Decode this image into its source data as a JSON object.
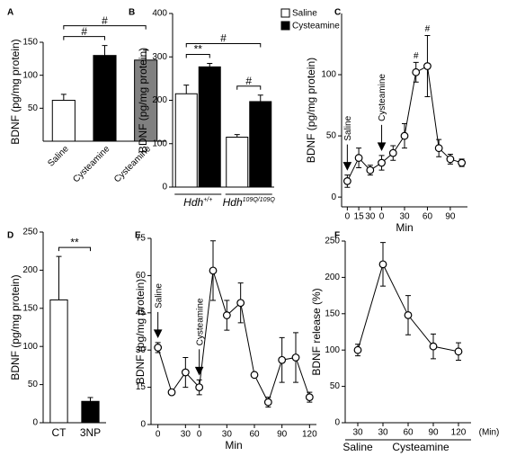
{
  "chart_data": [
    {
      "type": "bar",
      "panel": "A",
      "ylabel": "BDNF (pg/mg protein)",
      "categories": [
        "Saline",
        "Cysteamine",
        "Cysteamine"
      ],
      "values": [
        62,
        130,
        123
      ],
      "errors": [
        9,
        15,
        15
      ],
      "colors": [
        "#ffffff",
        "#000000",
        "#808080"
      ],
      "ylim": [
        0,
        150
      ],
      "yticks": [
        50,
        100,
        150
      ],
      "brackets": [
        {
          "pair": [
            0,
            1
          ],
          "label": "#"
        },
        {
          "pair": [
            0,
            2
          ],
          "label": "#"
        }
      ]
    },
    {
      "type": "grouped_bar",
      "panel": "B",
      "ylabel": "BDNF (pg/mg protein)",
      "categories": [
        {
          "name": "Hdh",
          "sup": "+/+"
        },
        {
          "name": "Hdh",
          "sup": "109Q/109Q"
        }
      ],
      "series": [
        {
          "name": "Saline",
          "color": "#ffffff",
          "values": [
            215,
            115
          ],
          "errors": [
            20,
            6
          ]
        },
        {
          "name": "Cysteamine",
          "color": "#000000",
          "values": [
            277,
            197
          ],
          "errors": [
            8,
            15
          ]
        }
      ],
      "ylim": [
        0,
        400
      ],
      "yticks": [
        0,
        100,
        200,
        300,
        400
      ],
      "brackets": [
        {
          "pair": [
            0,
            1
          ],
          "label": "**"
        },
        {
          "pair": [
            2,
            3
          ],
          "label": "#"
        },
        {
          "pair": [
            0,
            3
          ],
          "label": "#"
        }
      ]
    },
    {
      "type": "line",
      "panel": "C",
      "ylabel": "BDNF (pg/mg protein)",
      "xlabel": "Min",
      "categories": [
        "0",
        "15",
        "30",
        "0",
        null,
        "30",
        null,
        "60",
        null,
        "90",
        null
      ],
      "values": [
        13,
        32,
        22,
        28,
        36,
        50,
        102,
        107,
        40,
        31,
        28
      ],
      "errors": [
        5,
        8,
        4,
        6,
        6,
        10,
        8,
        25,
        7,
        4,
        3
      ],
      "ylim": [
        -8,
        150
      ],
      "yticks": [
        0,
        50,
        100
      ],
      "arrows": [
        {
          "label": "Saline",
          "at": 0
        },
        {
          "label": "Cysteamine",
          "at": 3
        }
      ],
      "markers": [
        {
          "label": "#",
          "at": 6
        },
        {
          "label": "#",
          "at": 7
        }
      ]
    },
    {
      "type": "bar",
      "panel": "D",
      "ylabel": "BDNF (pg/mg protein)",
      "categories": [
        "CT",
        "3NP"
      ],
      "values": [
        161,
        28
      ],
      "errors": [
        57,
        5
      ],
      "colors": [
        "#ffffff",
        "#000000"
      ],
      "ylim": [
        0,
        250
      ],
      "yticks": [
        0,
        50,
        100,
        150,
        200,
        250
      ],
      "brackets": [
        {
          "pair": [
            0,
            1
          ],
          "label": "**"
        }
      ]
    },
    {
      "type": "line",
      "panel": "E",
      "ylabel": "BDNF (pg/mg protein)",
      "xlabel": "Min",
      "categories": [
        "0",
        null,
        "30",
        "0",
        null,
        "30",
        null,
        "60",
        null,
        "90",
        null,
        "120"
      ],
      "values": [
        31,
        13,
        21,
        15,
        62,
        44,
        49,
        20,
        9,
        26,
        27,
        11
      ],
      "errors": [
        2,
        1,
        6,
        3,
        12,
        6,
        8,
        1,
        2,
        9,
        10,
        2
      ],
      "ylim": [
        0,
        75
      ],
      "yticks": [
        0,
        15,
        30,
        45,
        60,
        75
      ],
      "arrows": [
        {
          "label": "Saline",
          "at": 0
        },
        {
          "label": "Cysteamine",
          "at": 3
        }
      ]
    },
    {
      "type": "line",
      "panel": "F",
      "ylabel": "BDNF release (%)",
      "xlabel": "(Min)",
      "categories": [
        "30",
        "30",
        "60",
        "90",
        "120"
      ],
      "values": [
        100,
        218,
        148,
        105,
        98
      ],
      "errors": [
        8,
        30,
        27,
        17,
        12
      ],
      "ylim": [
        0,
        250
      ],
      "yticks": [
        0,
        50,
        100,
        150,
        200,
        250
      ],
      "groups": [
        {
          "label": "Saline",
          "span": [
            0,
            0
          ]
        },
        {
          "label": "Cysteamine",
          "span": [
            1,
            4
          ]
        }
      ]
    }
  ]
}
